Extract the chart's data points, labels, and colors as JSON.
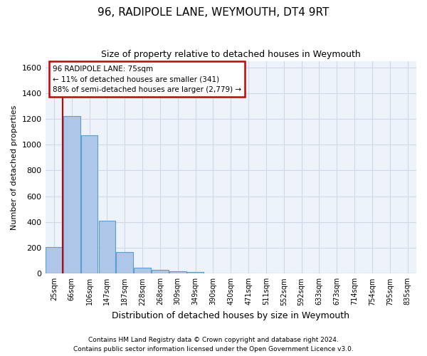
{
  "title": "96, RADIPOLE LANE, WEYMOUTH, DT4 9RT",
  "subtitle": "Size of property relative to detached houses in Weymouth",
  "xlabel": "Distribution of detached houses by size in Weymouth",
  "ylabel": "Number of detached properties",
  "footer_line1": "Contains HM Land Registry data © Crown copyright and database right 2024.",
  "footer_line2": "Contains public sector information licensed under the Open Government Licence v3.0.",
  "bin_labels": [
    "25sqm",
    "66sqm",
    "106sqm",
    "147sqm",
    "187sqm",
    "228sqm",
    "268sqm",
    "309sqm",
    "349sqm",
    "390sqm",
    "430sqm",
    "471sqm",
    "511sqm",
    "552sqm",
    "592sqm",
    "633sqm",
    "673sqm",
    "714sqm",
    "754sqm",
    "795sqm",
    "835sqm"
  ],
  "bar_values": [
    205,
    1225,
    1075,
    410,
    165,
    45,
    28,
    18,
    13,
    0,
    0,
    0,
    0,
    0,
    0,
    0,
    0,
    0,
    0,
    0,
    0
  ],
  "bar_color": "#aec6e8",
  "bar_edge_color": "#5a9fd4",
  "grid_color": "#d0d8e8",
  "background_color": "#eef2fa",
  "annotation_line1": "96 RADIPOLE LANE: 75sqm",
  "annotation_line2": "← 11% of detached houses are smaller (341)",
  "annotation_line3": "88% of semi-detached houses are larger (2,779) →",
  "annotation_box_color": "#ffffff",
  "annotation_box_edge": "#cc0000",
  "red_line_color": "#cc0000",
  "ylim": [
    0,
    1650
  ],
  "yticks": [
    0,
    200,
    400,
    600,
    800,
    1000,
    1200,
    1400,
    1600
  ],
  "red_line_x": 0.485
}
